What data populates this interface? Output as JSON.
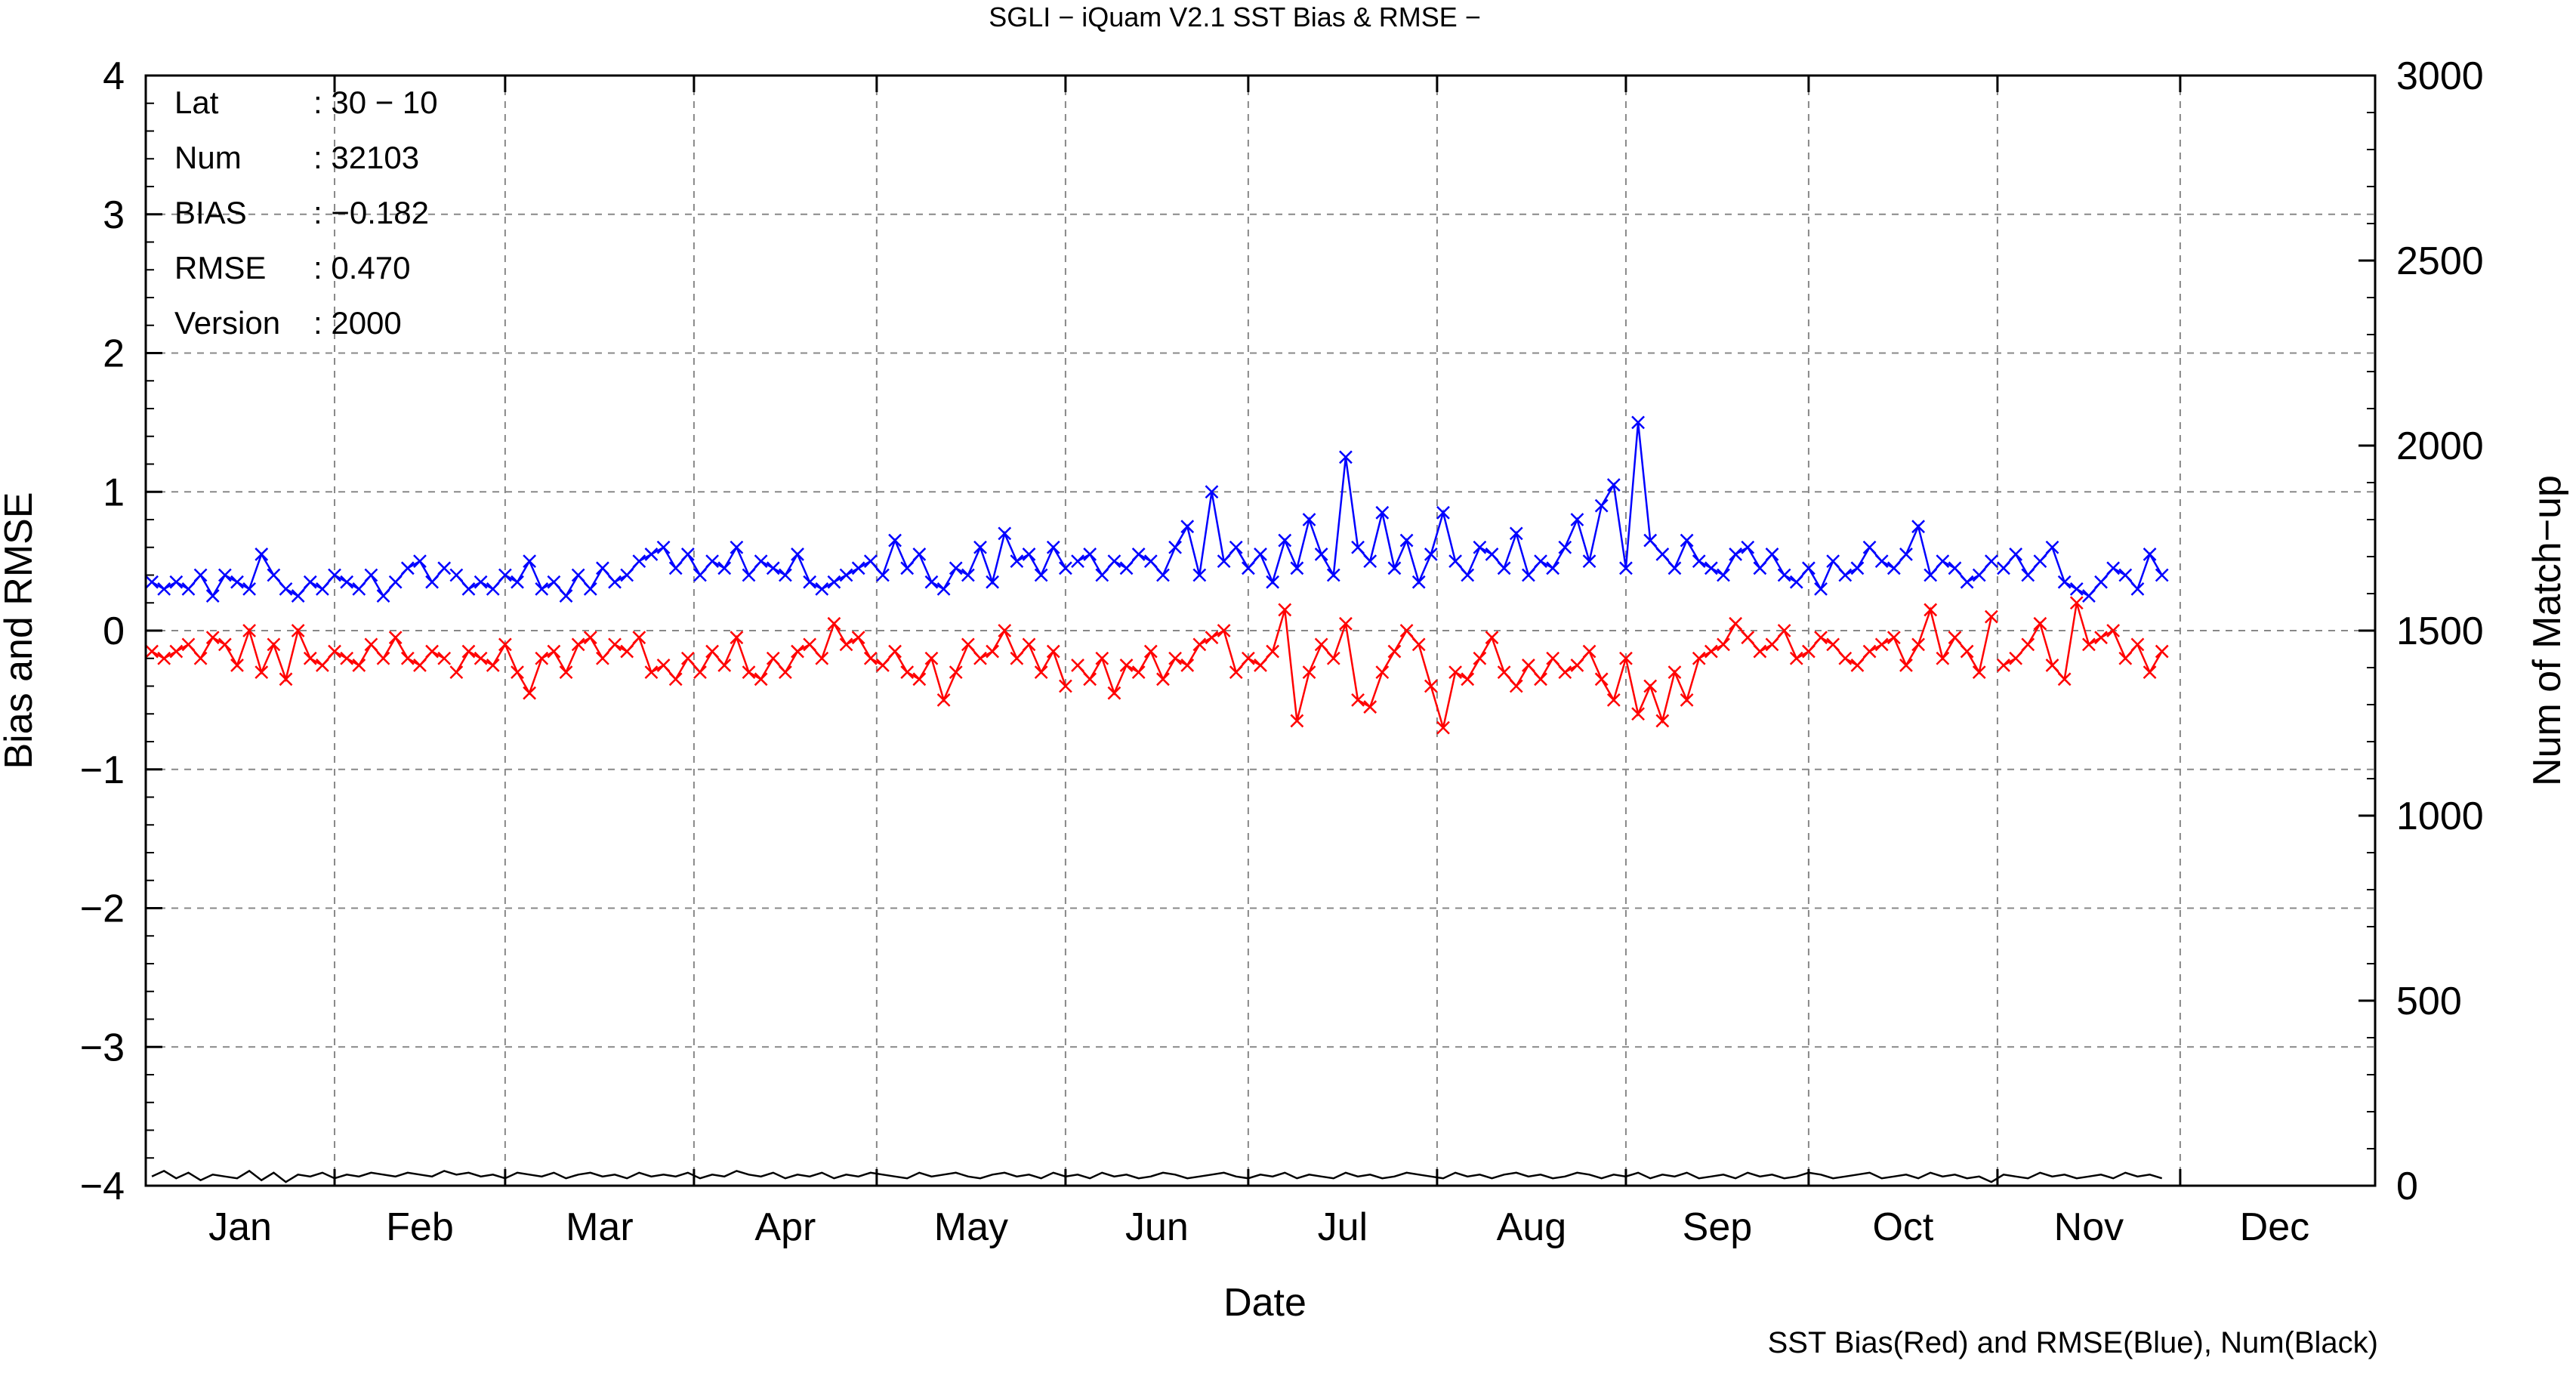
{
  "chart_data": {
    "type": "line",
    "title": "SGLI − iQuam V2.1 SST Bias & RMSE  −",
    "xlabel": "Date",
    "ylabel": "Bias and RMSE",
    "y2label": "Num of Match−up",
    "caption": "SST Bias(Red) and RMSE(Blue), Num(Black)",
    "ylim": [
      -4,
      4
    ],
    "y2lim": [
      0,
      3000
    ],
    "xlim_day": [
      0,
      366
    ],
    "grid": true,
    "y_ticks": [
      "4",
      "3",
      "2",
      "1",
      "0",
      "−1",
      "−2",
      "−3",
      "−4"
    ],
    "y2_ticks": [
      "3000",
      "2500",
      "2000",
      "1500",
      "1000",
      "500",
      "0"
    ],
    "month_labels": [
      "Jan",
      "Feb",
      "Mar",
      "Apr",
      "May",
      "Jun",
      "Jul",
      "Aug",
      "Sep",
      "Oct",
      "Nov",
      "Dec"
    ],
    "info_box": [
      {
        "key": "Lat",
        "value": ": 30 − 10"
      },
      {
        "key": "Num",
        "value": ": 32103"
      },
      {
        "key": "BIAS",
        "value": ": −0.182"
      },
      {
        "key": "RMSE",
        "value": ": 0.470"
      },
      {
        "key": "Version",
        "value": ": 2000"
      }
    ],
    "series": [
      {
        "name": "SST Bias",
        "color": "#ff0000",
        "axis": "left",
        "marker": "x",
        "x": [
          1,
          3,
          5,
          7,
          9,
          11,
          13,
          15,
          17,
          19,
          21,
          23,
          25,
          27,
          29,
          31,
          33,
          35,
          37,
          39,
          41,
          43,
          45,
          47,
          49,
          51,
          53,
          55,
          57,
          59,
          61,
          63,
          65,
          67,
          69,
          71,
          73,
          75,
          77,
          79,
          81,
          83,
          85,
          87,
          89,
          91,
          93,
          95,
          97,
          99,
          101,
          103,
          105,
          107,
          109,
          111,
          113,
          115,
          117,
          119,
          121,
          123,
          125,
          127,
          129,
          131,
          133,
          135,
          137,
          139,
          141,
          143,
          145,
          147,
          149,
          151,
          153,
          155,
          157,
          159,
          161,
          163,
          165,
          167,
          169,
          171,
          173,
          175,
          177,
          179,
          181,
          183,
          185,
          187,
          189,
          191,
          193,
          195,
          197,
          199,
          201,
          203,
          205,
          207,
          209,
          211,
          213,
          215,
          217,
          219,
          221,
          223,
          225,
          227,
          229,
          231,
          233,
          235,
          237,
          239,
          241,
          243,
          245,
          247,
          249,
          251,
          253,
          255,
          257,
          259,
          261,
          263,
          265,
          267,
          269,
          271,
          273,
          275,
          277,
          279,
          281,
          283,
          285,
          287,
          289,
          291,
          293,
          295,
          297,
          299,
          301,
          303,
          305,
          307,
          309,
          311,
          313,
          315,
          317,
          319,
          321,
          323,
          325,
          327,
          329,
          331
        ],
        "y": [
          -0.15,
          -0.2,
          -0.15,
          -0.1,
          -0.2,
          -0.05,
          -0.1,
          -0.25,
          0.0,
          -0.3,
          -0.1,
          -0.35,
          0.0,
          -0.2,
          -0.25,
          -0.15,
          -0.2,
          -0.25,
          -0.1,
          -0.2,
          -0.05,
          -0.2,
          -0.25,
          -0.15,
          -0.2,
          -0.3,
          -0.15,
          -0.2,
          -0.25,
          -0.1,
          -0.3,
          -0.45,
          -0.2,
          -0.15,
          -0.3,
          -0.1,
          -0.05,
          -0.2,
          -0.1,
          -0.15,
          -0.05,
          -0.3,
          -0.25,
          -0.35,
          -0.2,
          -0.3,
          -0.15,
          -0.25,
          -0.05,
          -0.3,
          -0.35,
          -0.2,
          -0.3,
          -0.15,
          -0.1,
          -0.2,
          0.05,
          -0.1,
          -0.05,
          -0.2,
          -0.25,
          -0.15,
          -0.3,
          -0.35,
          -0.2,
          -0.5,
          -0.3,
          -0.1,
          -0.2,
          -0.15,
          0.0,
          -0.2,
          -0.1,
          -0.3,
          -0.15,
          -0.4,
          -0.25,
          -0.35,
          -0.2,
          -0.45,
          -0.25,
          -0.3,
          -0.15,
          -0.35,
          -0.2,
          -0.25,
          -0.1,
          -0.05,
          0.0,
          -0.3,
          -0.2,
          -0.25,
          -0.15,
          0.15,
          -0.65,
          -0.3,
          -0.1,
          -0.2,
          0.05,
          -0.5,
          -0.55,
          -0.3,
          -0.15,
          0.0,
          -0.1,
          -0.4,
          -0.7,
          -0.3,
          -0.35,
          -0.2,
          -0.05,
          -0.3,
          -0.4,
          -0.25,
          -0.35,
          -0.2,
          -0.3,
          -0.25,
          -0.15,
          -0.35,
          -0.5,
          -0.2,
          -0.6,
          -0.4,
          -0.65,
          -0.3,
          -0.5,
          -0.2,
          -0.15,
          -0.1,
          0.05,
          -0.05,
          -0.15,
          -0.1,
          0.0,
          -0.2,
          -0.15,
          -0.05,
          -0.1,
          -0.2,
          -0.25,
          -0.15,
          -0.1,
          -0.05,
          -0.25,
          -0.1,
          0.15,
          -0.2,
          -0.05,
          -0.15,
          -0.3,
          0.1,
          -0.25,
          -0.2,
          -0.1,
          0.05,
          -0.25,
          -0.35,
          0.2,
          -0.1,
          -0.05,
          0.0,
          -0.2,
          -0.1,
          -0.3,
          -0.15
        ],
        "gaps_after": [
          49,
          151,
          303
        ]
      },
      {
        "name": "RMSE",
        "color": "#0000ff",
        "axis": "left",
        "marker": "x",
        "x": [
          1,
          3,
          5,
          7,
          9,
          11,
          13,
          15,
          17,
          19,
          21,
          23,
          25,
          27,
          29,
          31,
          33,
          35,
          37,
          39,
          41,
          43,
          45,
          47,
          49,
          51,
          53,
          55,
          57,
          59,
          61,
          63,
          65,
          67,
          69,
          71,
          73,
          75,
          77,
          79,
          81,
          83,
          85,
          87,
          89,
          91,
          93,
          95,
          97,
          99,
          101,
          103,
          105,
          107,
          109,
          111,
          113,
          115,
          117,
          119,
          121,
          123,
          125,
          127,
          129,
          131,
          133,
          135,
          137,
          139,
          141,
          143,
          145,
          147,
          149,
          151,
          153,
          155,
          157,
          159,
          161,
          163,
          165,
          167,
          169,
          171,
          173,
          175,
          177,
          179,
          181,
          183,
          185,
          187,
          189,
          191,
          193,
          195,
          197,
          199,
          201,
          203,
          205,
          207,
          209,
          211,
          213,
          215,
          217,
          219,
          221,
          223,
          225,
          227,
          229,
          231,
          233,
          235,
          237,
          239,
          241,
          243,
          245,
          247,
          249,
          251,
          253,
          255,
          257,
          259,
          261,
          263,
          265,
          267,
          269,
          271,
          273,
          275,
          277,
          279,
          281,
          283,
          285,
          287,
          289,
          291,
          293,
          295,
          297,
          299,
          301,
          303,
          305,
          307,
          309,
          311,
          313,
          315,
          317,
          319,
          321,
          323,
          325,
          327,
          329,
          331
        ],
        "y": [
          0.35,
          0.3,
          0.35,
          0.3,
          0.4,
          0.25,
          0.4,
          0.35,
          0.3,
          0.55,
          0.4,
          0.3,
          0.25,
          0.35,
          0.3,
          0.4,
          0.35,
          0.3,
          0.4,
          0.25,
          0.35,
          0.45,
          0.5,
          0.35,
          0.45,
          0.4,
          0.3,
          0.35,
          0.3,
          0.4,
          0.35,
          0.5,
          0.3,
          0.35,
          0.25,
          0.4,
          0.3,
          0.45,
          0.35,
          0.4,
          0.5,
          0.55,
          0.6,
          0.45,
          0.55,
          0.4,
          0.5,
          0.45,
          0.6,
          0.4,
          0.5,
          0.45,
          0.4,
          0.55,
          0.35,
          0.3,
          0.35,
          0.4,
          0.45,
          0.5,
          0.4,
          0.65,
          0.45,
          0.55,
          0.35,
          0.3,
          0.45,
          0.4,
          0.6,
          0.35,
          0.7,
          0.5,
          0.55,
          0.4,
          0.6,
          0.45,
          0.5,
          0.55,
          0.4,
          0.5,
          0.45,
          0.55,
          0.5,
          0.4,
          0.6,
          0.75,
          0.4,
          1.0,
          0.5,
          0.6,
          0.45,
          0.55,
          0.35,
          0.65,
          0.45,
          0.8,
          0.55,
          0.4,
          1.25,
          0.6,
          0.5,
          0.85,
          0.45,
          0.65,
          0.35,
          0.55,
          0.85,
          0.5,
          0.4,
          0.6,
          0.55,
          0.45,
          0.7,
          0.4,
          0.5,
          0.45,
          0.6,
          0.8,
          0.5,
          0.9,
          1.05,
          0.45,
          1.5,
          0.65,
          0.55,
          0.45,
          0.65,
          0.5,
          0.45,
          0.4,
          0.55,
          0.6,
          0.45,
          0.55,
          0.4,
          0.35,
          0.45,
          0.3,
          0.5,
          0.4,
          0.45,
          0.6,
          0.5,
          0.45,
          0.55,
          0.75,
          0.4,
          0.5,
          0.45,
          0.35,
          0.4,
          0.5,
          0.45,
          0.55,
          0.4,
          0.5,
          0.6,
          0.35,
          0.3,
          0.25,
          0.35,
          0.45,
          0.4,
          0.3,
          0.55,
          0.4
        ],
        "gaps_after": [
          49,
          151,
          303
        ]
      },
      {
        "name": "Num",
        "color": "#000000",
        "axis": "right",
        "marker": "none",
        "x": [
          1,
          3,
          5,
          7,
          9,
          11,
          13,
          15,
          17,
          19,
          21,
          23,
          25,
          27,
          29,
          31,
          33,
          35,
          37,
          39,
          41,
          43,
          45,
          47,
          49,
          51,
          53,
          55,
          57,
          59,
          61,
          63,
          65,
          67,
          69,
          71,
          73,
          75,
          77,
          79,
          81,
          83,
          85,
          87,
          89,
          91,
          93,
          95,
          97,
          99,
          101,
          103,
          105,
          107,
          109,
          111,
          113,
          115,
          117,
          119,
          121,
          123,
          125,
          127,
          129,
          131,
          133,
          135,
          137,
          139,
          141,
          143,
          145,
          147,
          149,
          151,
          153,
          155,
          157,
          159,
          161,
          163,
          165,
          167,
          169,
          171,
          173,
          175,
          177,
          179,
          181,
          183,
          185,
          187,
          189,
          191,
          193,
          195,
          197,
          199,
          201,
          203,
          205,
          207,
          209,
          211,
          213,
          215,
          217,
          219,
          221,
          223,
          225,
          227,
          229,
          231,
          233,
          235,
          237,
          239,
          241,
          243,
          245,
          247,
          249,
          251,
          253,
          255,
          257,
          259,
          261,
          263,
          265,
          267,
          269,
          271,
          273,
          275,
          277,
          279,
          281,
          283,
          285,
          287,
          289,
          291,
          293,
          295,
          297,
          299,
          301,
          303,
          305,
          307,
          309,
          311,
          313,
          315,
          317,
          319,
          321,
          323,
          325,
          327,
          329,
          331
        ],
        "y": [
          25,
          40,
          20,
          35,
          15,
          30,
          25,
          20,
          40,
          15,
          35,
          10,
          30,
          25,
          35,
          20,
          30,
          25,
          35,
          30,
          25,
          35,
          30,
          25,
          40,
          30,
          35,
          25,
          30,
          20,
          35,
          30,
          25,
          35,
          20,
          30,
          35,
          25,
          30,
          20,
          35,
          25,
          30,
          25,
          35,
          20,
          30,
          25,
          40,
          30,
          25,
          35,
          20,
          30,
          25,
          35,
          20,
          30,
          25,
          35,
          30,
          25,
          20,
          35,
          25,
          30,
          35,
          25,
          20,
          30,
          35,
          25,
          30,
          20,
          35,
          25,
          30,
          20,
          35,
          25,
          30,
          20,
          25,
          35,
          30,
          20,
          25,
          30,
          35,
          25,
          20,
          30,
          25,
          35,
          20,
          30,
          25,
          20,
          35,
          25,
          30,
          20,
          25,
          35,
          30,
          25,
          20,
          35,
          25,
          30,
          20,
          30,
          35,
          25,
          30,
          20,
          25,
          35,
          30,
          20,
          30,
          25,
          35,
          20,
          30,
          25,
          35,
          20,
          25,
          30,
          20,
          35,
          25,
          30,
          20,
          25,
          35,
          30,
          20,
          25,
          30,
          35,
          20,
          25,
          30,
          20,
          35,
          25,
          30,
          20,
          25,
          10,
          30,
          25,
          20,
          35,
          25,
          30,
          20,
          25,
          30,
          20,
          35,
          25,
          30,
          20
        ],
        "gaps_after": []
      }
    ]
  }
}
